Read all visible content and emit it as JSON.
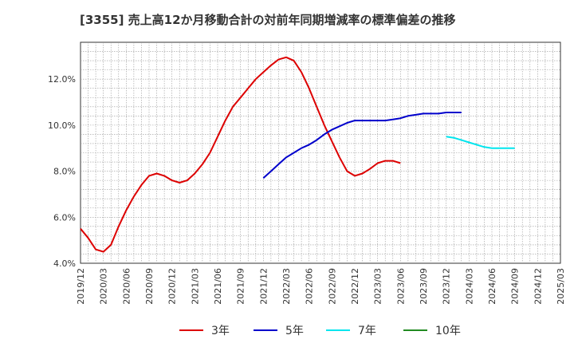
{
  "chart_data": {
    "type": "line",
    "title": "[3355]  売上高12か月移動合計の対前年同期増減率の標準偏差の推移",
    "xlabel": "",
    "ylabel": "",
    "ylim": [
      4.0,
      13.6
    ],
    "yticks": [
      "4.0%",
      "6.0%",
      "8.0%",
      "10.0%",
      "12.0%"
    ],
    "ytick_values": [
      4,
      6,
      8,
      10,
      12
    ],
    "xtick_labels": [
      "2019/12",
      "2020/03",
      "2020/06",
      "2020/09",
      "2020/12",
      "2021/03",
      "2021/06",
      "2021/09",
      "2021/12",
      "2022/03",
      "2022/06",
      "2022/09",
      "2022/12",
      "2023/03",
      "2023/06",
      "2023/09",
      "2023/12",
      "2024/03",
      "2024/06",
      "2024/09",
      "2024/12",
      "2025/03"
    ],
    "grid": true,
    "legend_position": "bottom",
    "series": [
      {
        "name": "3年",
        "color": "#dd0000",
        "start_index": 0,
        "values": [
          5.5,
          5.1,
          4.6,
          4.5,
          4.8,
          5.6,
          6.3,
          6.9,
          7.4,
          7.8,
          7.9,
          7.8,
          7.6,
          7.5,
          7.6,
          7.9,
          8.3,
          8.8,
          9.5,
          10.2,
          10.8,
          11.2,
          11.6,
          12.0,
          12.3,
          12.6,
          12.85,
          12.95,
          12.8,
          12.3,
          11.6,
          10.8,
          10.0,
          9.3,
          8.6,
          8.0,
          7.8,
          7.9,
          8.1,
          8.35,
          8.45,
          8.45,
          8.35
        ]
      },
      {
        "name": "5年",
        "color": "#0000cc",
        "start_index": 24,
        "values": [
          7.7,
          8.0,
          8.3,
          8.6,
          8.8,
          9.0,
          9.15,
          9.35,
          9.6,
          9.8,
          9.95,
          10.1,
          10.2,
          10.2,
          10.2,
          10.2,
          10.2,
          10.25,
          10.3,
          10.4,
          10.45,
          10.5,
          10.5,
          10.5,
          10.55,
          10.55,
          10.55
        ]
      },
      {
        "name": "7年",
        "color": "#00e5ee",
        "start_index": 48,
        "values": [
          9.5,
          9.45,
          9.35,
          9.25,
          9.15,
          9.05,
          9.0,
          9.0,
          9.0,
          9.0
        ]
      },
      {
        "name": "10年",
        "color": "#228b22",
        "start_index": 0,
        "values": []
      }
    ]
  }
}
